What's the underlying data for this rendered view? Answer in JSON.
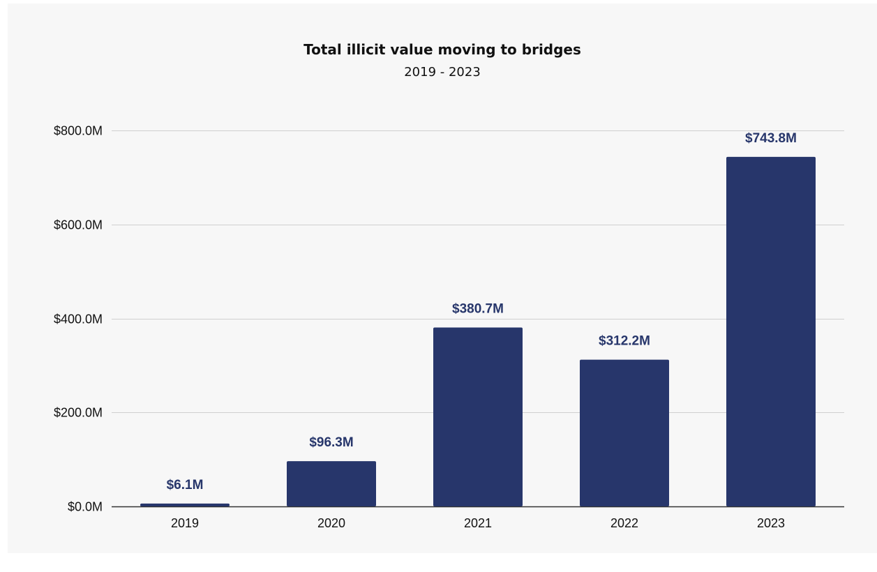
{
  "chart_data": {
    "type": "bar",
    "title": "Total illicit value moving to bridges",
    "subtitle": "2019 - 2023",
    "categories": [
      "2019",
      "2020",
      "2021",
      "2022",
      "2023"
    ],
    "values": [
      6.1,
      96.3,
      380.7,
      312.2,
      743.8
    ],
    "data_labels": [
      "$6.1M",
      "$96.3M",
      "$380.7M",
      "$312.2M",
      "$743.8M"
    ],
    "unit": "$M",
    "xlabel": "",
    "ylabel": "",
    "ylim": [
      0,
      800
    ],
    "yticks": [
      0,
      200,
      400,
      600,
      800
    ],
    "ytick_labels": [
      "$0.0M",
      "$200.0M",
      "$400.0M",
      "$600.0M",
      "$800.0M"
    ],
    "grid": true,
    "legend": "none",
    "colors": {
      "bar": "#27366b",
      "data_label": "#27366b",
      "gridline": "#cfcfcf",
      "baseline": "#333333",
      "background": "#f7f7f7"
    }
  }
}
